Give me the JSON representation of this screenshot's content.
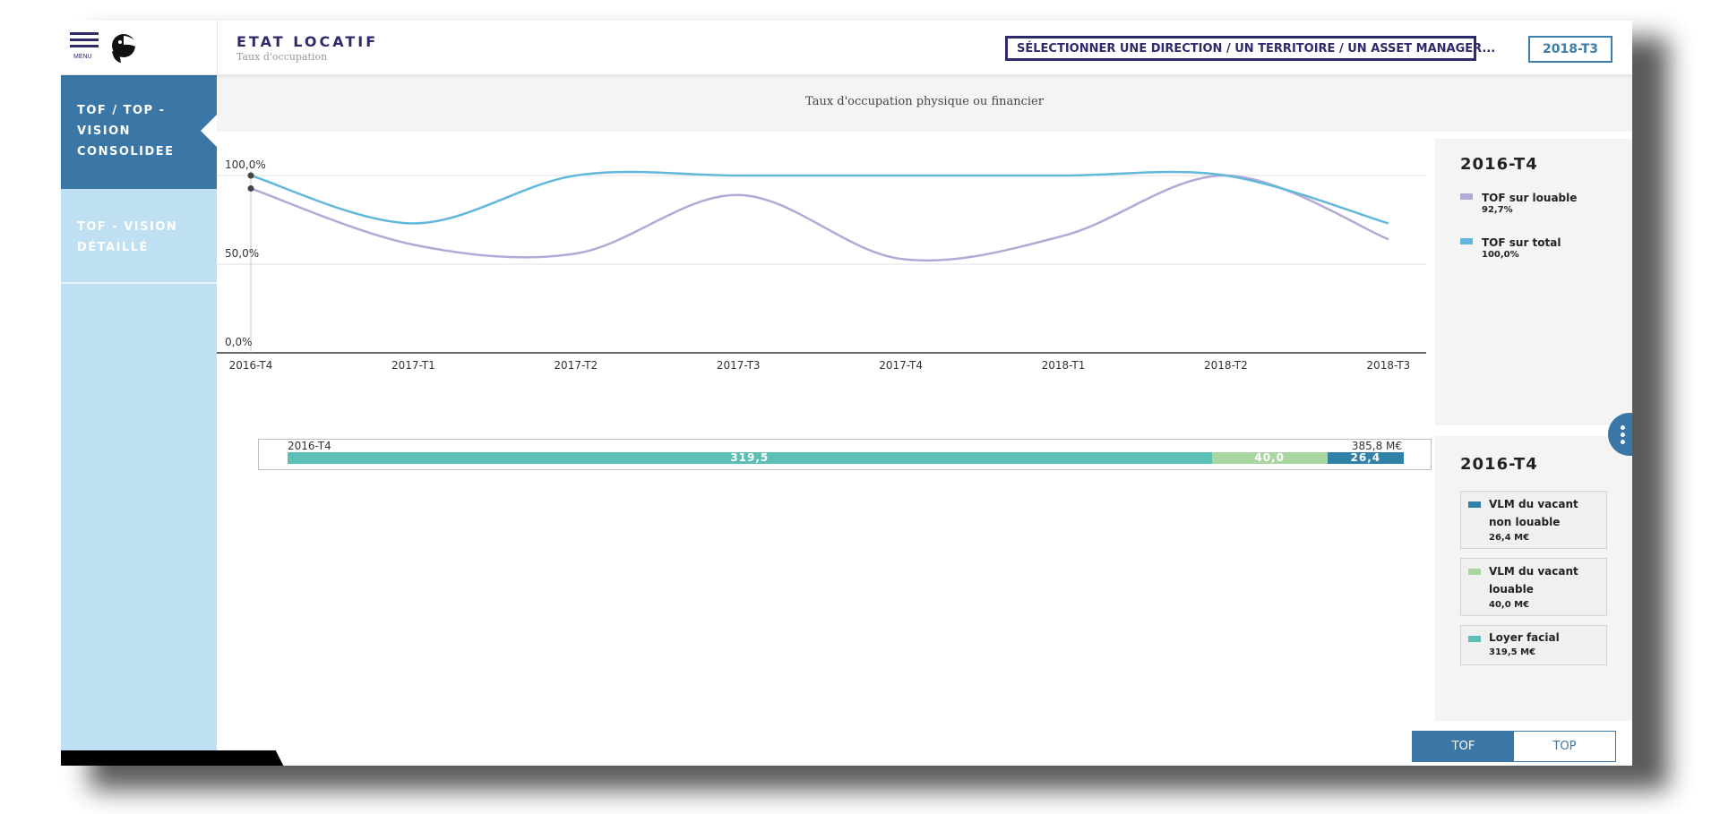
{
  "header": {
    "menu_label": "MENU",
    "title": "ETAT LOCATIF",
    "subtitle": "Taux d'occupation",
    "search_label": "SÉLECTIONNER UNE DIRECTION / UN TERRITOIRE / UN ASSET MANAGER...",
    "period": "2018-T3"
  },
  "sidebar": {
    "items": [
      {
        "label": "TOF / TOP - VISION CONSOLIDEE",
        "active": true
      },
      {
        "label": "TOF - VISION DÉTAILLÉ",
        "active": false
      }
    ]
  },
  "chart_header": {
    "title": "Taux d'occupation physique ou financier"
  },
  "colors": {
    "lavender": "#b3a9d6",
    "sky": "#62b8db",
    "dark_blue": "#3180a8",
    "light_green": "#a8d5a0",
    "teal": "#5bbfb5",
    "accent": "#3b77a6"
  },
  "chart_data": {
    "type": "line",
    "x": [
      "2016-T4",
      "2017-T1",
      "2017-T2",
      "2017-T3",
      "2017-T4",
      "2018-T1",
      "2018-T2",
      "2018-T3"
    ],
    "series": [
      {
        "name": "TOF sur louable",
        "values": [
          92.7,
          61,
          56,
          89,
          53,
          66,
          100,
          64
        ]
      },
      {
        "name": "TOF sur total",
        "values": [
          100,
          73,
          100,
          100,
          100,
          100,
          100,
          73
        ]
      }
    ],
    "ytick_labels": [
      "100,0%",
      "50,0%",
      "0,0%"
    ],
    "ylim": [
      0,
      100
    ],
    "grid": true,
    "legend_position": "right-panel"
  },
  "stacked_bar": {
    "period": "2016-T4",
    "total": "385,8 M€",
    "segments": [
      {
        "name": "Loyer facial",
        "value": 319.5,
        "label": "319,5",
        "color": "#5bbfb5"
      },
      {
        "name": "VLM du vacant louable",
        "value": 40.0,
        "label": "40,0",
        "color": "#a8d5a0"
      },
      {
        "name": "VLM du vacant non louable",
        "value": 26.4,
        "label": "26,4",
        "color": "#3180a8"
      }
    ]
  },
  "right_panel": {
    "top_heading": "2016-T4",
    "top_legend": [
      {
        "name": "TOF sur louable",
        "value": "92,7%",
        "color": "#b3a9d6"
      },
      {
        "name": "TOF sur total",
        "value": "100,0%",
        "color": "#62b8db"
      }
    ],
    "bottom_heading": "2016-T4",
    "bottom_legend": [
      {
        "name": "VLM du vacant non louable",
        "value": "26,4 M€",
        "color": "#3180a8"
      },
      {
        "name": "VLM du vacant louable",
        "value": "40,0 M€",
        "color": "#a8d5a0"
      },
      {
        "name": "Loyer facial",
        "value": "319,5 M€",
        "color": "#5bbfb5"
      }
    ]
  },
  "toggle": {
    "options": [
      "TOF",
      "TOP"
    ],
    "selected": "TOF"
  }
}
